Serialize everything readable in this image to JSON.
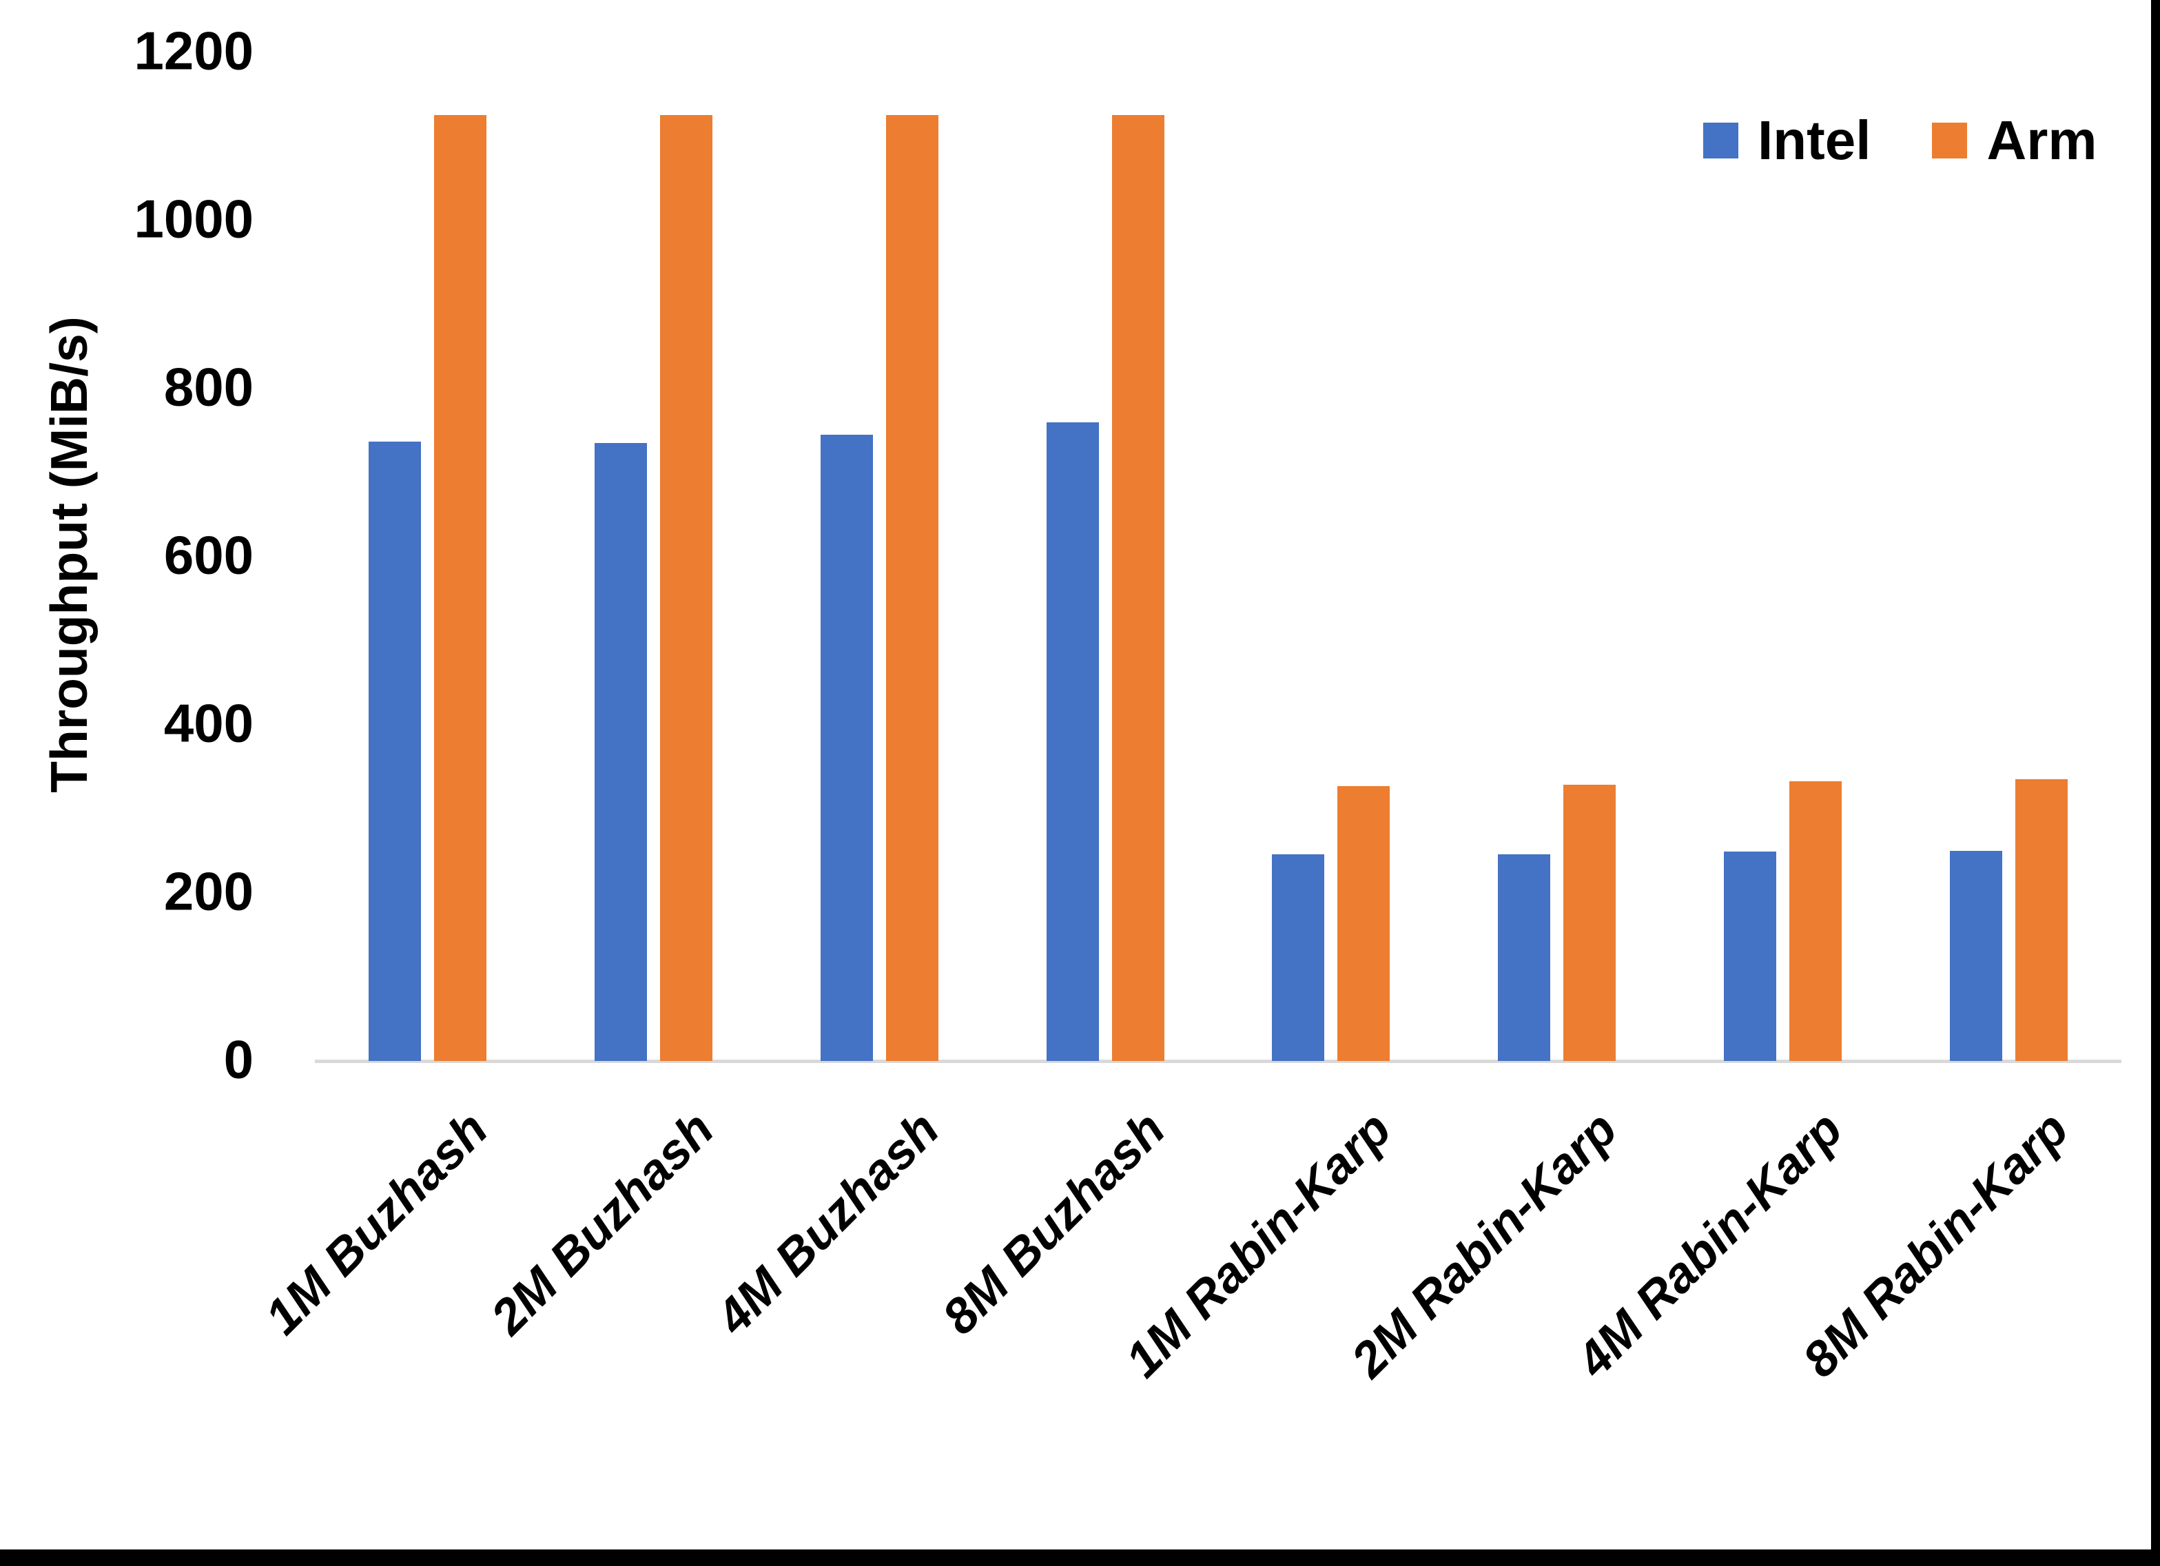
{
  "chart_data": {
    "type": "bar",
    "title": "",
    "xlabel": "",
    "ylabel": "Throughput (MiB/s)",
    "ylim": [
      0,
      1200
    ],
    "yticks": [
      0,
      200,
      400,
      600,
      800,
      1000,
      1200
    ],
    "grid": false,
    "legend_position": "top-right",
    "categories": [
      "1M Buzhash",
      "2M Buzhash",
      "4M Buzhash",
      "8M Buzhash",
      "1M Rabin-Karp",
      "2M Rabin-Karp",
      "4M Rabin-Karp",
      "8M Rabin-Karp"
    ],
    "series": [
      {
        "name": "Intel",
        "color": "#4472C4",
        "values": [
          737,
          735,
          745,
          760,
          246,
          246,
          249,
          250
        ]
      },
      {
        "name": "Arm",
        "color": "#ED7D31",
        "values": [
          1125,
          1125,
          1125,
          1125,
          327,
          329,
          333,
          335
        ]
      }
    ],
    "axis_line_color": "#d9d9d9",
    "text_color": "#000000"
  }
}
